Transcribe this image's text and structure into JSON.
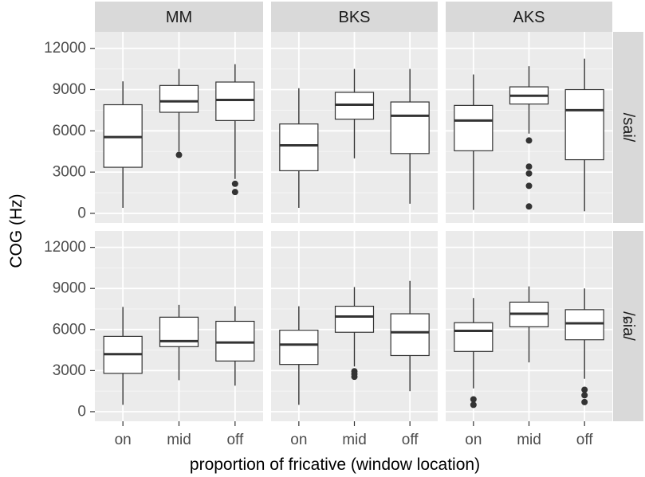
{
  "chart_data": {
    "type": "boxplot",
    "ylabel": "COG (Hz)",
    "xlabel": "proportion of fricative (window location)",
    "categories": [
      "on",
      "mid",
      "off"
    ],
    "columns": [
      "MM",
      "BKS",
      "AKS"
    ],
    "rows": [
      "/sai/",
      "/ɕia/"
    ],
    "ylim": [
      -700,
      13200
    ],
    "yticks": [
      0,
      3000,
      6000,
      9000,
      12000
    ],
    "panels": [
      {
        "speaker": "MM",
        "syllable": "/sai/",
        "boxes": [
          {
            "x": "on",
            "whisker_low": 400,
            "q1": 3350,
            "median": 5550,
            "q3": 7900,
            "whisker_high": 9600,
            "outliers": []
          },
          {
            "x": "mid",
            "whisker_low": 4500,
            "q1": 7350,
            "median": 8150,
            "q3": 9300,
            "whisker_high": 10500,
            "outliers": [
              4250
            ]
          },
          {
            "x": "off",
            "whisker_low": 2500,
            "q1": 6750,
            "median": 8250,
            "q3": 9550,
            "whisker_high": 10850,
            "outliers": [
              2150,
              1550
            ]
          }
        ]
      },
      {
        "speaker": "BKS",
        "syllable": "/sai/",
        "boxes": [
          {
            "x": "on",
            "whisker_low": 400,
            "q1": 3100,
            "median": 4950,
            "q3": 6500,
            "whisker_high": 9100,
            "outliers": []
          },
          {
            "x": "mid",
            "whisker_low": 4000,
            "q1": 6850,
            "median": 7900,
            "q3": 8800,
            "whisker_high": 10500,
            "outliers": []
          },
          {
            "x": "off",
            "whisker_low": 700,
            "q1": 4350,
            "median": 7100,
            "q3": 8100,
            "whisker_high": 10500,
            "outliers": []
          }
        ]
      },
      {
        "speaker": "AKS",
        "syllable": "/sai/",
        "boxes": [
          {
            "x": "on",
            "whisker_low": 250,
            "q1": 4550,
            "median": 6750,
            "q3": 7850,
            "whisker_high": 10100,
            "outliers": []
          },
          {
            "x": "mid",
            "whisker_low": 5800,
            "q1": 7950,
            "median": 8550,
            "q3": 9200,
            "whisker_high": 10700,
            "outliers": [
              5300,
              3400,
              2900,
              2000,
              500
            ]
          },
          {
            "x": "off",
            "whisker_low": 150,
            "q1": 3900,
            "median": 7500,
            "q3": 9000,
            "whisker_high": 11250,
            "outliers": []
          }
        ]
      },
      {
        "speaker": "MM",
        "syllable": "/ɕia/",
        "boxes": [
          {
            "x": "on",
            "whisker_low": 500,
            "q1": 2800,
            "median": 4200,
            "q3": 5500,
            "whisker_high": 7650,
            "outliers": []
          },
          {
            "x": "mid",
            "whisker_low": 2300,
            "q1": 4750,
            "median": 5150,
            "q3": 6900,
            "whisker_high": 7800,
            "outliers": []
          },
          {
            "x": "off",
            "whisker_low": 1900,
            "q1": 3700,
            "median": 5050,
            "q3": 6600,
            "whisker_high": 7700,
            "outliers": []
          }
        ]
      },
      {
        "speaker": "BKS",
        "syllable": "/ɕia/",
        "boxes": [
          {
            "x": "on",
            "whisker_low": 500,
            "q1": 3450,
            "median": 4900,
            "q3": 5950,
            "whisker_high": 7700,
            "outliers": []
          },
          {
            "x": "mid",
            "whisker_low": 3300,
            "q1": 5800,
            "median": 6950,
            "q3": 7700,
            "whisker_high": 9100,
            "outliers": [
              2950,
              2750,
              2550
            ]
          },
          {
            "x": "off",
            "whisker_low": 1500,
            "q1": 4100,
            "median": 5800,
            "q3": 7150,
            "whisker_high": 9550,
            "outliers": []
          }
        ]
      },
      {
        "speaker": "AKS",
        "syllable": "/ɕia/",
        "boxes": [
          {
            "x": "on",
            "whisker_low": 1700,
            "q1": 4400,
            "median": 5900,
            "q3": 6500,
            "whisker_high": 8300,
            "outliers": [
              900,
              500
            ]
          },
          {
            "x": "mid",
            "whisker_low": 3600,
            "q1": 6200,
            "median": 7150,
            "q3": 8000,
            "whisker_high": 9150,
            "outliers": []
          },
          {
            "x": "off",
            "whisker_low": 2400,
            "q1": 5250,
            "median": 6450,
            "q3": 7450,
            "whisker_high": 9000,
            "outliers": [
              1600,
              1200,
              700
            ]
          }
        ]
      }
    ]
  }
}
